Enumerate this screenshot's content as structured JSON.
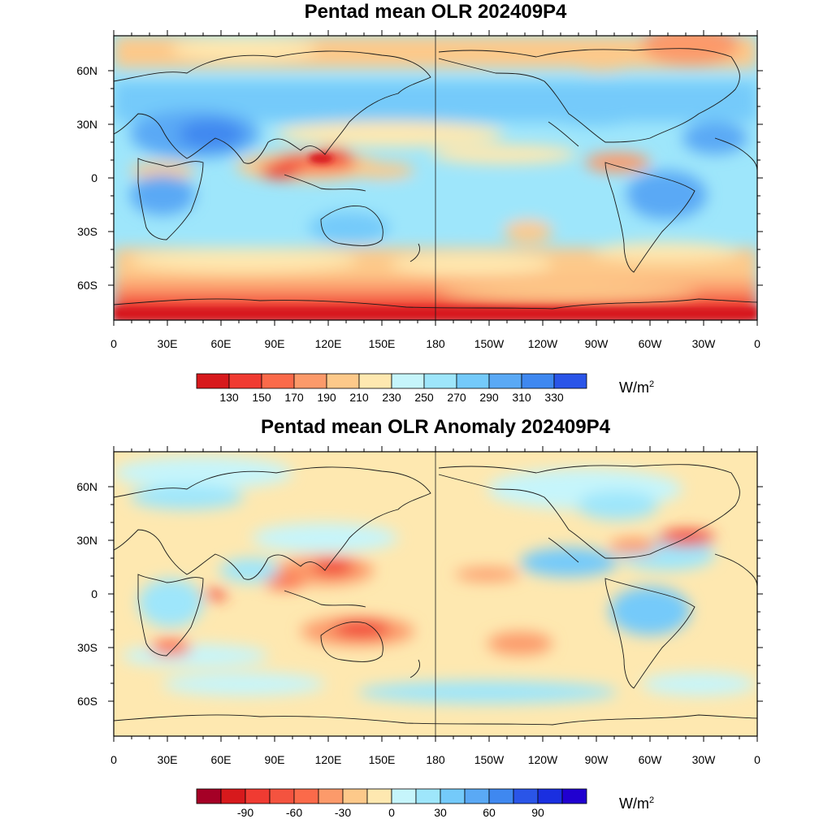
{
  "panels": [
    {
      "title": "Pentad mean OLR 202409P4",
      "units": {
        "base": "W/m",
        "sup": "2"
      },
      "colorbar": {
        "colors": [
          "#d7191c",
          "#f03b32",
          "#fb6a4a",
          "#fc9a6a",
          "#fdc98a",
          "#fee8b0",
          "#c6f5fb",
          "#9ee6fb",
          "#74cafa",
          "#5aa9f5",
          "#3f88f0",
          "#2a55e8"
        ],
        "labels": [
          "130",
          "150",
          "170",
          "190",
          "210",
          "230",
          "250",
          "270",
          "290",
          "310",
          "330"
        ]
      }
    },
    {
      "title": "Pentad mean OLR Anomaly 202409P4",
      "units": {
        "base": "W/m",
        "sup": "2"
      },
      "colorbar": {
        "colors": [
          "#a50026",
          "#d7191c",
          "#f03b32",
          "#f4533f",
          "#fb6a4a",
          "#fc9a6a",
          "#fdc98a",
          "#fee8b0",
          "#c6f5fb",
          "#9ee6fb",
          "#74cafa",
          "#5aa9f5",
          "#3f88f0",
          "#2a55e8",
          "#1a2fe0",
          "#2000d0"
        ],
        "labels": [
          "",
          "-90",
          "",
          "-60",
          "",
          "-30",
          "",
          "0",
          "",
          "30",
          "",
          "60",
          "",
          "90",
          "",
          ""
        ]
      }
    }
  ],
  "axes": {
    "lon_labels": [
      "0",
      "30E",
      "60E",
      "90E",
      "120E",
      "150E",
      "180",
      "150W",
      "120W",
      "90W",
      "60W",
      "30W",
      "0"
    ],
    "lat_labels": [
      "60N",
      "30N",
      "0",
      "30S",
      "60S"
    ]
  }
}
